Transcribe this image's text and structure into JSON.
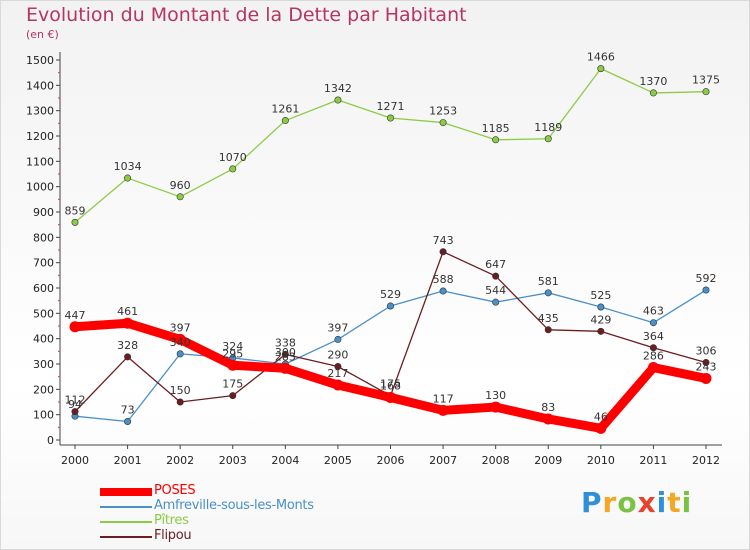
{
  "header": {
    "title": "Evolution du Montant de la Dette par Habitant",
    "unit": "(en €)"
  },
  "chart_data": {
    "type": "line",
    "title": "Evolution du Montant de la Dette par Habitant",
    "ylabel": "(en €)",
    "xlabel": "",
    "x": [
      "2000",
      "2001",
      "2002",
      "2003",
      "2004",
      "2005",
      "2006",
      "2007",
      "2008",
      "2009",
      "2010",
      "2011",
      "2012"
    ],
    "ylim": [
      0,
      1500
    ],
    "yticks": [
      0,
      100,
      200,
      300,
      400,
      500,
      600,
      700,
      800,
      900,
      1000,
      1100,
      1200,
      1300,
      1400,
      1500
    ],
    "grid": false,
    "legend_position": "bottom-left",
    "series": [
      {
        "name": "POSES",
        "color": "#ff0000",
        "values": [
          447,
          461,
          397,
          295,
          283,
          217,
          168,
          117,
          130,
          83,
          46,
          286,
          243
        ]
      },
      {
        "name": "Amfreville-sous-les-Monts",
        "color": "#4a90c8",
        "values": [
          94,
          73,
          340,
          324,
          300,
          397,
          529,
          588,
          544,
          581,
          525,
          463,
          592
        ]
      },
      {
        "name": "Pîtres",
        "color": "#8ccc45",
        "values": [
          859,
          1034,
          960,
          1070,
          1261,
          1342,
          1271,
          1253,
          1185,
          1189,
          1466,
          1370,
          1375
        ]
      },
      {
        "name": "Flipou",
        "color": "#6b1e22",
        "values": [
          112,
          328,
          150,
          175,
          338,
          290,
          175,
          743,
          647,
          435,
          429,
          364,
          306
        ]
      }
    ]
  },
  "logo": {
    "letters": [
      "P",
      "r",
      "o",
      "x",
      "i",
      "t",
      "i"
    ],
    "colors": [
      "#2f8fd8",
      "#f5a623",
      "#7cc242",
      "#e8412c",
      "#2f8fd8",
      "#f5a623",
      "#7cc242"
    ]
  }
}
